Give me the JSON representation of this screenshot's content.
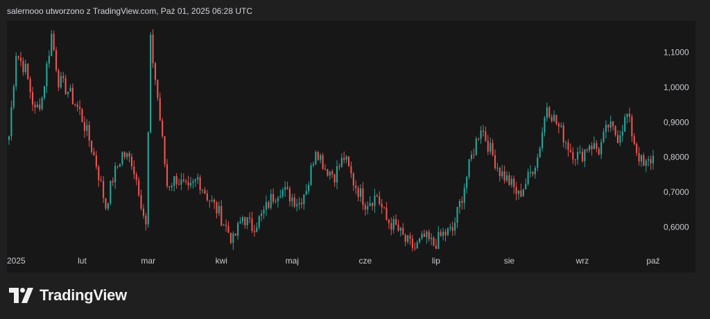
{
  "header": {
    "text": "salernooo utworzono z TradingView.com, Paź 01, 2025 06:28 UTC"
  },
  "brand": {
    "name": "TradingView",
    "logo_icon": "tradingview-logo-icon"
  },
  "colors": {
    "up": "#26a69a",
    "down": "#ef5350",
    "background": "#171717",
    "page": "#1f1f1f"
  },
  "chart_data": {
    "type": "candlestick",
    "title": "",
    "xlabel": "",
    "ylabel": "",
    "ylim": [
      0.51,
      1.19
    ],
    "y_ticks": [
      "1,1000",
      "1,0000",
      "0,9000",
      "0,8000",
      "0,7000",
      "0,6000"
    ],
    "y_tick_values": [
      1.1,
      1.0,
      0.9,
      0.8,
      0.7,
      0.6
    ],
    "x_ticks": [
      "2025",
      "lut",
      "mar",
      "kwi",
      "maj",
      "cze",
      "lip",
      "sie",
      "wrz",
      "paź"
    ],
    "x_tick_dates": [
      "2025-01-01",
      "2025-02-01",
      "2025-03-01",
      "2025-04-01",
      "2025-05-01",
      "2025-06-01",
      "2025-07-01",
      "2025-08-01",
      "2025-09-01",
      "2025-10-01"
    ],
    "start_date": "2025-01-01",
    "end_date": "2025-10-01",
    "close_path": [
      [
        "2025-01-01",
        0.86
      ],
      [
        "2025-01-04",
        1.1
      ],
      [
        "2025-01-08",
        1.05
      ],
      [
        "2025-01-12",
        0.93
      ],
      [
        "2025-01-15",
        0.97
      ],
      [
        "2025-01-19",
        1.15
      ],
      [
        "2025-01-22",
        1.02
      ],
      [
        "2025-01-26",
        0.99
      ],
      [
        "2025-01-31",
        0.93
      ],
      [
        "2025-02-04",
        0.85
      ],
      [
        "2025-02-07",
        0.78
      ],
      [
        "2025-02-11",
        0.66
      ],
      [
        "2025-02-14",
        0.74
      ],
      [
        "2025-02-18",
        0.81
      ],
      [
        "2025-02-22",
        0.79
      ],
      [
        "2025-02-25",
        0.71
      ],
      [
        "2025-02-28",
        0.6
      ],
      [
        "2025-03-02",
        1.13
      ],
      [
        "2025-03-05",
        0.97
      ],
      [
        "2025-03-09",
        0.72
      ],
      [
        "2025-03-13",
        0.74
      ],
      [
        "2025-03-18",
        0.7
      ],
      [
        "2025-03-22",
        0.74
      ],
      [
        "2025-03-26",
        0.69
      ],
      [
        "2025-03-31",
        0.64
      ],
      [
        "2025-04-03",
        0.6
      ],
      [
        "2025-04-06",
        0.56
      ],
      [
        "2025-04-10",
        0.63
      ],
      [
        "2025-04-14",
        0.6
      ],
      [
        "2025-04-18",
        0.63
      ],
      [
        "2025-04-22",
        0.68
      ],
      [
        "2025-04-26",
        0.71
      ],
      [
        "2025-04-30",
        0.69
      ],
      [
        "2025-05-04",
        0.67
      ],
      [
        "2025-05-08",
        0.73
      ],
      [
        "2025-05-11",
        0.83
      ],
      [
        "2025-05-15",
        0.77
      ],
      [
        "2025-05-19",
        0.75
      ],
      [
        "2025-05-23",
        0.8
      ],
      [
        "2025-05-27",
        0.73
      ],
      [
        "2025-06-01",
        0.67
      ],
      [
        "2025-06-06",
        0.69
      ],
      [
        "2025-06-10",
        0.62
      ],
      [
        "2025-06-14",
        0.6
      ],
      [
        "2025-06-18",
        0.56
      ],
      [
        "2025-06-22",
        0.54
      ],
      [
        "2025-06-26",
        0.57
      ],
      [
        "2025-06-30",
        0.55
      ],
      [
        "2025-07-04",
        0.58
      ],
      [
        "2025-07-08",
        0.59
      ],
      [
        "2025-07-12",
        0.69
      ],
      [
        "2025-07-16",
        0.8
      ],
      [
        "2025-07-20",
        0.89
      ],
      [
        "2025-07-24",
        0.82
      ],
      [
        "2025-07-28",
        0.76
      ],
      [
        "2025-08-01",
        0.73
      ],
      [
        "2025-08-05",
        0.69
      ],
      [
        "2025-08-09",
        0.74
      ],
      [
        "2025-08-13",
        0.8
      ],
      [
        "2025-08-17",
        0.95
      ],
      [
        "2025-08-20",
        0.91
      ],
      [
        "2025-08-24",
        0.86
      ],
      [
        "2025-08-27",
        0.82
      ],
      [
        "2025-08-31",
        0.8
      ],
      [
        "2025-09-04",
        0.84
      ],
      [
        "2025-09-08",
        0.82
      ],
      [
        "2025-09-12",
        0.89
      ],
      [
        "2025-09-16",
        0.86
      ],
      [
        "2025-09-20",
        0.92
      ],
      [
        "2025-09-24",
        0.82
      ],
      [
        "2025-09-27",
        0.77
      ],
      [
        "2025-10-01",
        0.8
      ]
    ]
  }
}
